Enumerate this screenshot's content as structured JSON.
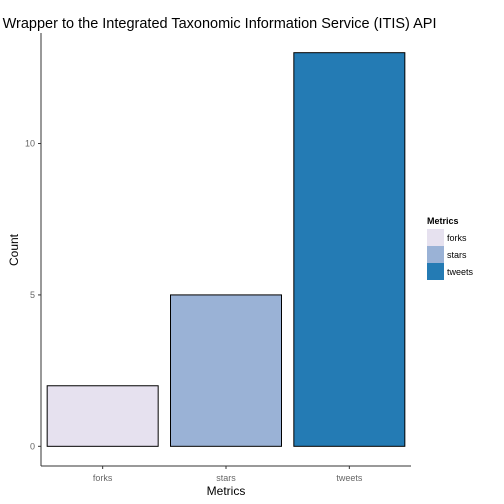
{
  "chart_data": {
    "type": "bar",
    "title": "ritis, Wrapper to the Integrated Taxonomic Information Service (ITIS) API",
    "xlabel": "Metrics",
    "ylabel": "Count",
    "categories": [
      "forks",
      "stars",
      "tweets"
    ],
    "values": [
      2,
      5,
      13
    ],
    "colors": [
      "#e6e1ef",
      "#9ab2d6",
      "#247bb4"
    ],
    "yticks": [
      0,
      5,
      10
    ],
    "ylim": [
      -0.65,
      13.65
    ],
    "grid": false,
    "legend": {
      "title": "Metrics",
      "placement": "right",
      "items": [
        "forks",
        "stars",
        "tweets"
      ]
    }
  }
}
